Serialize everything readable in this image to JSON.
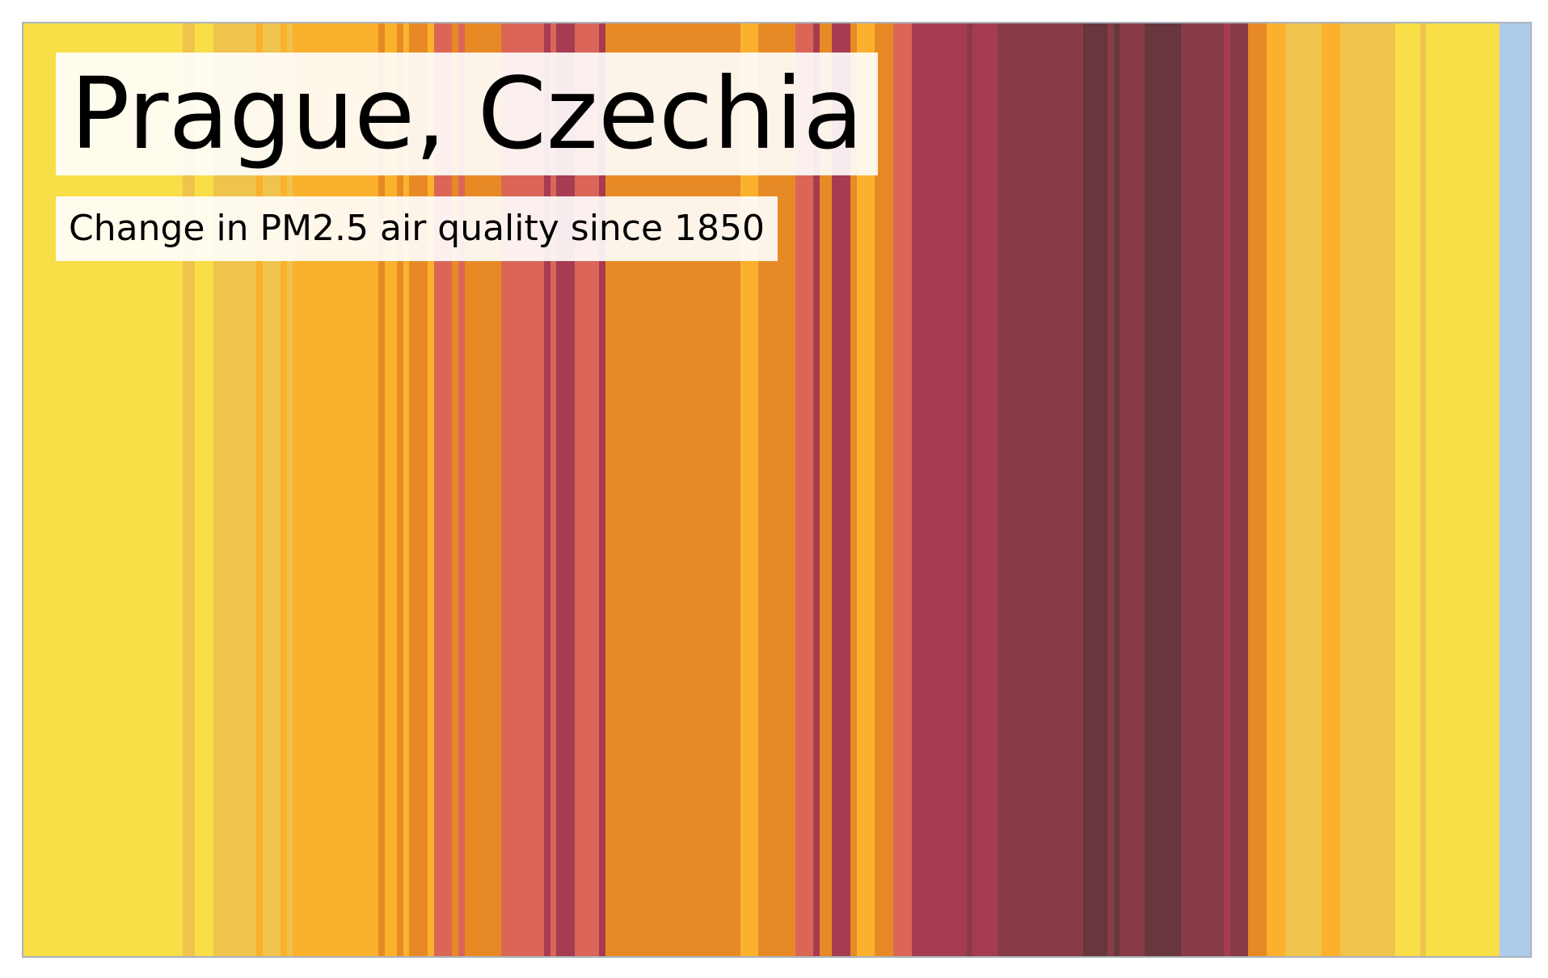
{
  "chart_data": {
    "type": "heatmap",
    "title": "Prague, Czechia",
    "subtitle": "Change in PM2.5 air quality since 1850",
    "grid": false,
    "legend": "none",
    "start_year": 1850,
    "palette": {
      "0": "#aecbea",
      "1": "#f8de47",
      "2": "#f0c44c",
      "3": "#fbb12e",
      "4": "#e78a26",
      "5": "#db6658",
      "6": "#a63c51",
      "7": "#893c48",
      "8": "#68363d"
    },
    "levels": [
      1,
      1,
      1,
      1,
      1,
      1,
      1,
      1,
      1,
      1,
      1,
      1,
      1,
      1,
      1,
      1,
      1,
      1,
      1,
      1,
      1,
      1,
      1,
      1,
      1,
      1,
      2,
      2,
      1,
      1,
      1,
      2,
      2,
      2,
      2,
      2,
      2,
      2,
      3,
      2,
      2,
      2,
      3,
      2,
      3,
      3,
      3,
      3,
      3,
      3,
      3,
      3,
      3,
      3,
      3,
      3,
      3,
      3,
      4,
      3,
      3,
      4,
      3,
      4,
      4,
      4,
      3,
      5,
      5,
      5,
      4,
      5,
      4,
      4,
      4,
      4,
      4,
      4,
      5,
      5,
      5,
      5,
      5,
      5,
      5,
      6,
      5,
      6,
      6,
      6,
      5,
      5,
      5,
      5,
      6,
      4,
      4,
      4,
      4,
      4,
      4,
      4,
      4,
      4,
      4,
      4,
      4,
      4,
      4,
      4,
      4,
      4,
      4,
      4,
      4,
      4,
      4,
      3,
      3,
      3,
      4,
      4,
      4,
      4,
      4,
      4,
      5,
      5,
      5,
      6,
      4,
      4,
      6,
      6,
      6,
      4,
      3,
      3,
      3,
      4,
      4,
      4,
      5,
      5,
      5,
      6,
      6,
      6,
      6,
      6,
      6,
      6,
      6,
      6,
      7,
      6,
      6,
      6,
      6,
      7,
      7,
      7,
      7,
      7,
      7,
      7,
      7,
      7,
      7,
      7,
      7,
      7,
      7,
      8,
      8,
      8,
      8,
      7,
      8,
      7,
      7,
      7,
      7,
      8,
      8,
      8,
      8,
      8,
      8,
      7,
      7,
      7,
      7,
      7,
      7,
      7,
      6,
      7,
      7,
      7,
      4,
      4,
      4,
      3,
      3,
      3,
      2,
      2,
      2,
      2,
      2,
      2,
      3,
      3,
      3,
      2,
      2,
      2,
      2,
      2,
      2,
      2,
      2,
      2,
      1,
      1,
      1,
      1,
      2,
      1,
      1,
      1,
      1,
      1,
      1,
      1,
      1,
      1,
      1,
      1,
      1,
      0,
      0,
      0,
      0,
      0
    ]
  }
}
